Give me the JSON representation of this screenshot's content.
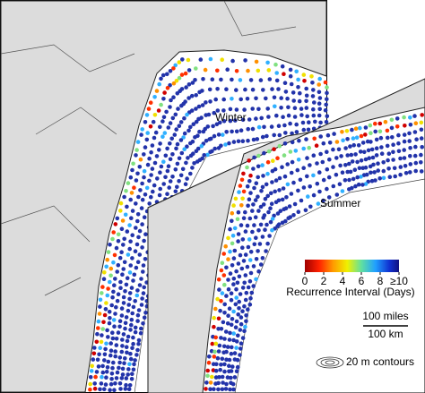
{
  "panels": [
    {
      "label": "Winter"
    },
    {
      "label": "Summer"
    }
  ],
  "legend": {
    "title": "Recurrence Interval (Days)",
    "range": [
      0,
      10
    ],
    "ticks": [
      0,
      2,
      4,
      6,
      8,
      {
        "value": 10,
        "label": "≥10"
      }
    ]
  },
  "scale_bar": {
    "miles": "100 miles",
    "km": "100 km"
  },
  "contours": "20 m contours"
}
